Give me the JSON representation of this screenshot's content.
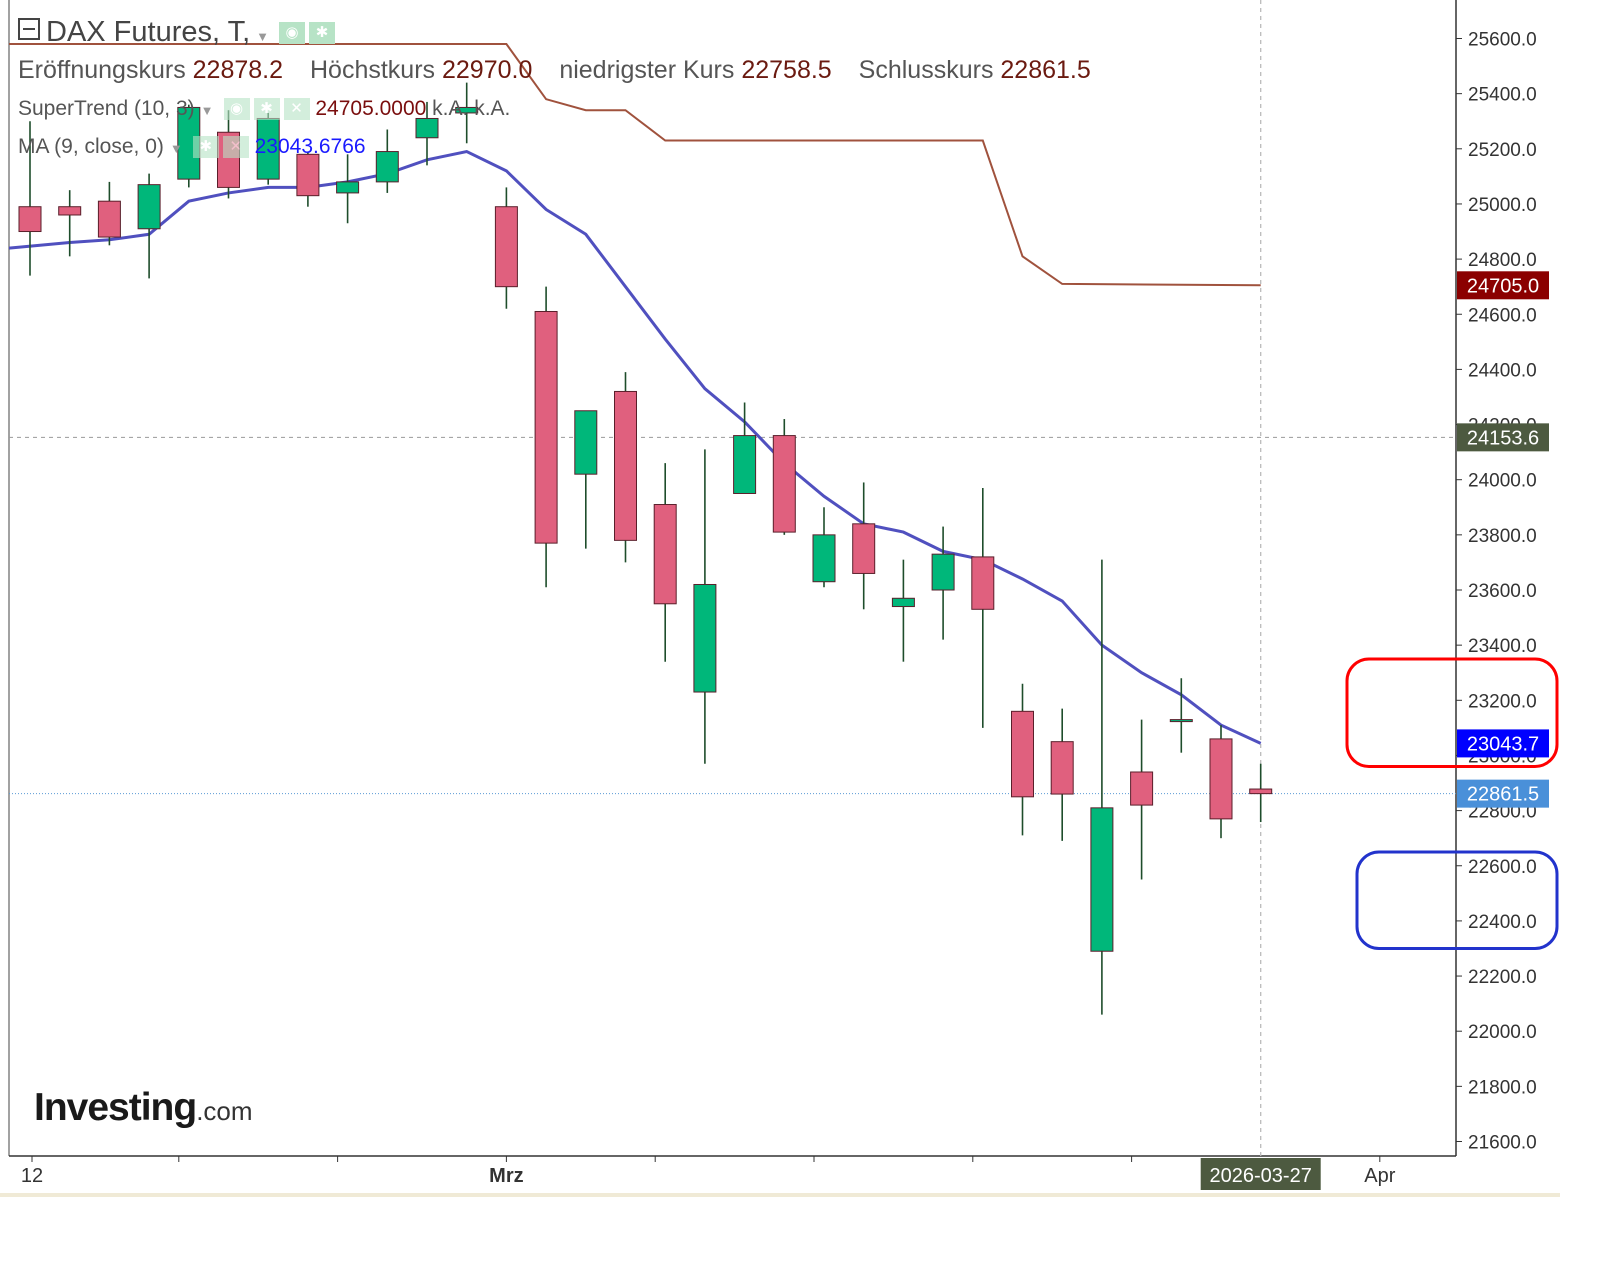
{
  "legend": {
    "title": "DAX Futures, T,",
    "ohlc": {
      "open_label": "Eröffnungskurs",
      "open_value": "22878.2",
      "high_label": "Höchstkurs",
      "high_value": "22970.0",
      "low_label": "niedrigster Kurs",
      "low_value": "22758.5",
      "close_label": "Schlusskurs",
      "close_value": "22861.5"
    },
    "supertrend": {
      "label": "SuperTrend (10, 3)",
      "value": "24705.0000",
      "na1": "k.A.",
      "na2": "k.A."
    },
    "ma": {
      "label": "MA (9, close, 0)",
      "value": "23043.6766"
    }
  },
  "watermark": {
    "brand": "Investing",
    "domain": ".com"
  },
  "colors": {
    "up": "#00b77a",
    "down": "#e0607e",
    "wick": "#1e4d2b",
    "ma_line": "#5050bf",
    "supertrend_line": "#a0523d",
    "crosshair": "#999999",
    "close_line": "#5b9bd5",
    "supertrend_badge": "#8b0000",
    "ma_badge": "#0000ff",
    "crosshair_badge": "#4d5a40",
    "close_badge": "#4a90d9",
    "highlight_red": "#ff0000",
    "highlight_blue": "#2233cc"
  },
  "chart_data": {
    "type": "candlestick",
    "ylim": [
      21550,
      25700
    ],
    "y_ticks": [
      "25600.0",
      "25400.0",
      "25200.0",
      "25000.0",
      "24800.0",
      "24600.0",
      "24400.0",
      "24200.0",
      "24000.0",
      "23800.0",
      "23600.0",
      "23400.0",
      "23200.0",
      "23000.0",
      "22800.0",
      "22600.0",
      "22400.0",
      "22200.0",
      "22000.0",
      "21800.0",
      "21600.0"
    ],
    "x_ticks": [
      {
        "label": "12",
        "index": 0
      },
      {
        "label": "Mrz",
        "index": 12
      },
      {
        "label": "Apr",
        "index": 34
      }
    ],
    "x_minor_tick_indices": [
      4,
      8,
      16,
      20,
      24,
      28
    ],
    "candles": [
      {
        "o": 24990,
        "h": 25300,
        "l": 24740,
        "c": 24900
      },
      {
        "o": 24990,
        "h": 25050,
        "l": 24810,
        "c": 24960
      },
      {
        "o": 25010,
        "h": 25080,
        "l": 24850,
        "c": 24880
      },
      {
        "o": 24910,
        "h": 25110,
        "l": 24730,
        "c": 25070
      },
      {
        "o": 25090,
        "h": 25360,
        "l": 25060,
        "c": 25350
      },
      {
        "o": 25260,
        "h": 25340,
        "l": 25020,
        "c": 25060
      },
      {
        "o": 25090,
        "h": 25330,
        "l": 25070,
        "c": 25310
      },
      {
        "o": 25180,
        "h": 25190,
        "l": 24990,
        "c": 25030
      },
      {
        "o": 25040,
        "h": 25180,
        "l": 24930,
        "c": 25080
      },
      {
        "o": 25080,
        "h": 25270,
        "l": 25040,
        "c": 25190
      },
      {
        "o": 25240,
        "h": 25370,
        "l": 25140,
        "c": 25310
      },
      {
        "o": 25330,
        "h": 25440,
        "l": 25220,
        "c": 25350
      },
      {
        "o": 24990,
        "h": 25060,
        "l": 24620,
        "c": 24700
      },
      {
        "o": 24610,
        "h": 24700,
        "l": 23610,
        "c": 23770
      },
      {
        "o": 24020,
        "h": 24250,
        "l": 23750,
        "c": 24250
      },
      {
        "o": 24320,
        "h": 24390,
        "l": 23700,
        "c": 23780
      },
      {
        "o": 23910,
        "h": 24060,
        "l": 23340,
        "c": 23550
      },
      {
        "o": 23230,
        "h": 24110,
        "l": 22970,
        "c": 23620
      },
      {
        "o": 23950,
        "h": 24280,
        "l": 23950,
        "c": 24160
      },
      {
        "o": 24160,
        "h": 24220,
        "l": 23800,
        "c": 23810
      },
      {
        "o": 23630,
        "h": 23900,
        "l": 23610,
        "c": 23800
      },
      {
        "o": 23840,
        "h": 23990,
        "l": 23530,
        "c": 23660
      },
      {
        "o": 23540,
        "h": 23710,
        "l": 23340,
        "c": 23570
      },
      {
        "o": 23600,
        "h": 23830,
        "l": 23420,
        "c": 23730
      },
      {
        "o": 23720,
        "h": 23970,
        "l": 23100,
        "c": 23530
      },
      {
        "o": 23160,
        "h": 23260,
        "l": 22710,
        "c": 22850
      },
      {
        "o": 23050,
        "h": 23170,
        "l": 22690,
        "c": 22860
      },
      {
        "o": 22290,
        "h": 23710,
        "l": 22060,
        "c": 22810
      },
      {
        "o": 22940,
        "h": 23130,
        "l": 22550,
        "c": 22820
      },
      {
        "o": 23130,
        "h": 23280,
        "l": 23010,
        "c": 23130
      },
      {
        "o": 23060,
        "h": 23110,
        "l": 22700,
        "c": 22770
      },
      {
        "o": 22878.2,
        "h": 22970,
        "l": 22758.5,
        "c": 22861.5
      }
    ],
    "ma_line": [
      24840,
      24860,
      24870,
      24890,
      25010,
      25040,
      25060,
      25060,
      25080,
      25110,
      25160,
      25190,
      25120,
      24980,
      24890,
      24700,
      24510,
      24330,
      24210,
      24060,
      23940,
      23840,
      23810,
      23740,
      23710,
      23640,
      23560,
      23400,
      23300,
      23220,
      23110,
      23043.7
    ],
    "supertrend_line": [
      {
        "i": 0,
        "v": 25580
      },
      {
        "i": 12,
        "v": 25580
      },
      {
        "i": 13,
        "v": 25380
      },
      {
        "i": 14,
        "v": 25340
      },
      {
        "i": 15,
        "v": 25340
      },
      {
        "i": 16,
        "v": 25230
      },
      {
        "i": 24,
        "v": 25230
      },
      {
        "i": 25,
        "v": 24810
      },
      {
        "i": 26,
        "v": 24710
      },
      {
        "i": 31,
        "v": 24705
      }
    ],
    "price_badges": {
      "supertrend": "24705.0",
      "crosshair": "24153.6",
      "ma": "23043.7",
      "close": "22861.5"
    },
    "crosshair_price": 24153.6,
    "close_price": 22861.5,
    "crosshair_date": "2026-03-27",
    "crosshair_index": 31,
    "highlight_zones": [
      {
        "color": "red",
        "from": 22960,
        "to": 23350
      },
      {
        "color": "blue",
        "from": 22300,
        "to": 22650
      }
    ]
  }
}
